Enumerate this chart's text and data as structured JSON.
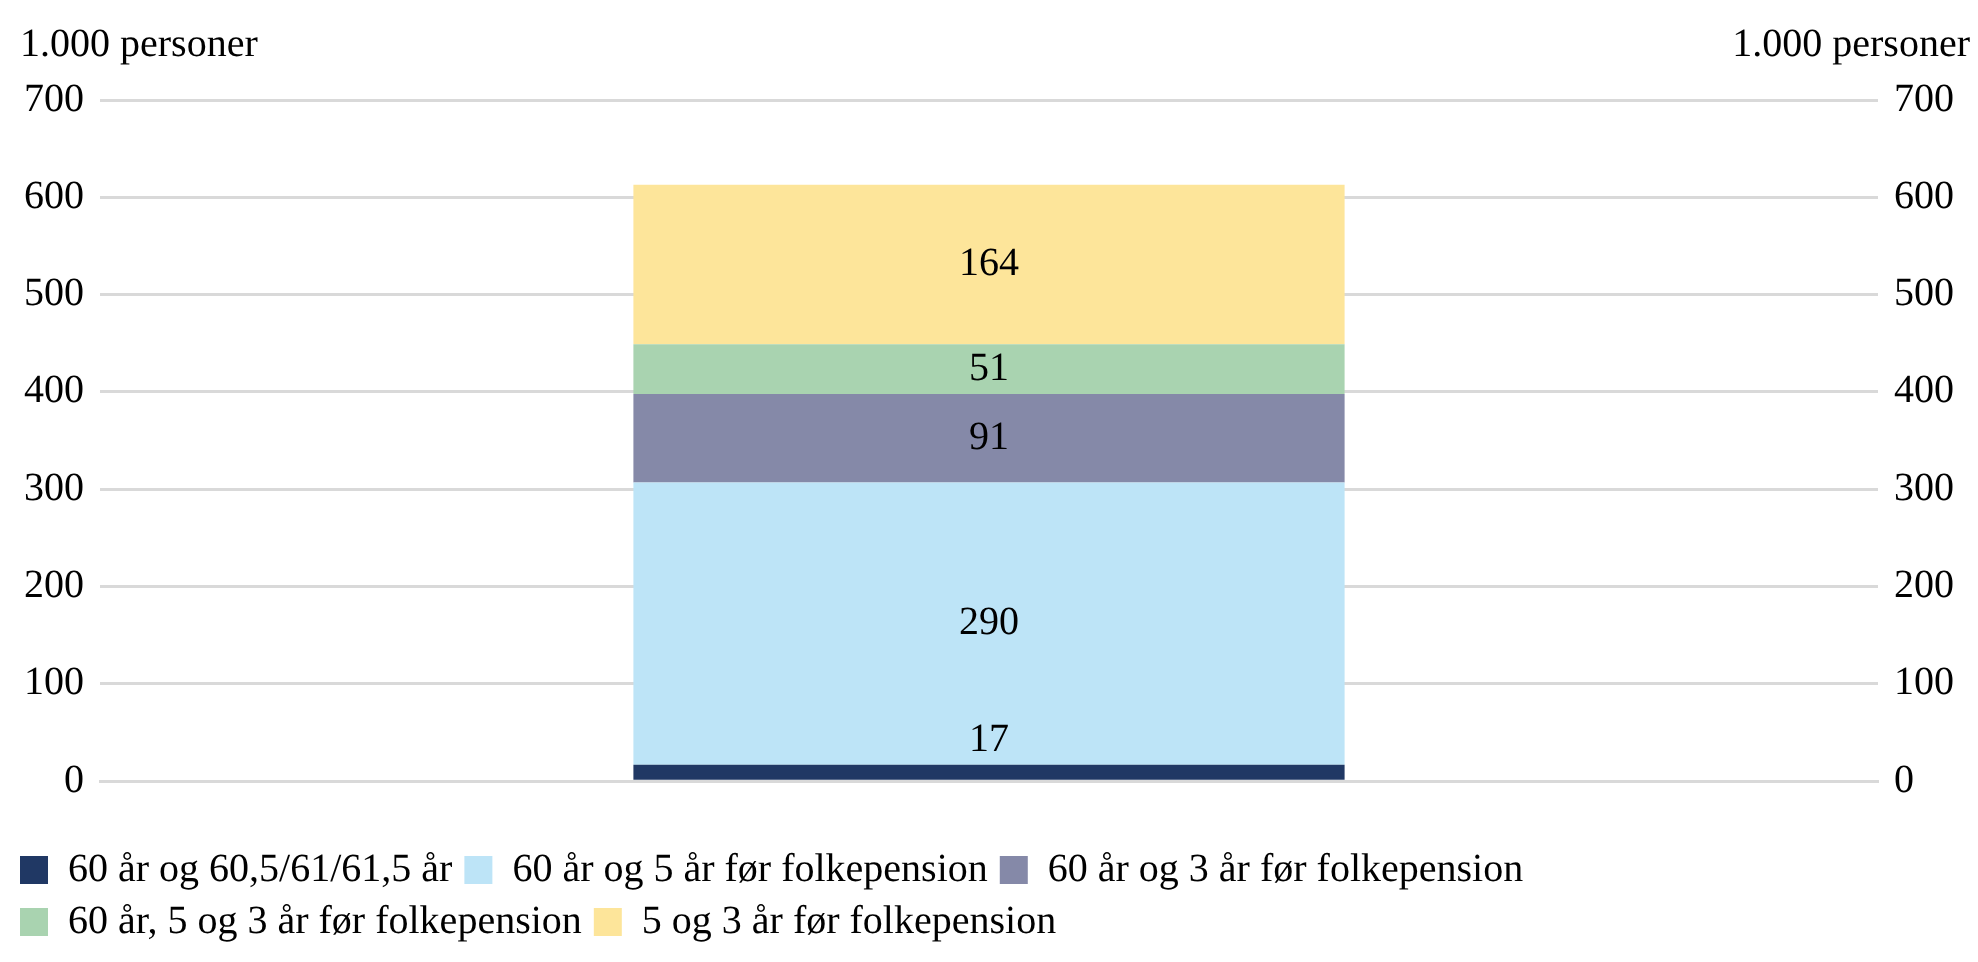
{
  "chart_data": {
    "type": "bar",
    "stacked": true,
    "categories": [
      null
    ],
    "series": [
      {
        "name": "60 år og 60,5/61/61,5 år",
        "color": "#203864",
        "values": [
          17
        ]
      },
      {
        "name": "60 år og 5 år før folkepension",
        "color": "#bde4f7",
        "values": [
          290
        ]
      },
      {
        "name": "60 år og 3 år før folkepension",
        "color": "#8589a8",
        "values": [
          91
        ]
      },
      {
        "name": "60 år, 5 og 3 år før folkepension",
        "color": "#a9d3b0",
        "values": [
          51
        ]
      },
      {
        "name": "5 og 3 år før folkepension",
        "color": "#fde59a",
        "values": [
          164
        ]
      }
    ],
    "ylabel": "1.000 personer",
    "y2label": "1.000 personer",
    "ylim": [
      0,
      700
    ],
    "yticks": [
      0,
      100,
      200,
      300,
      400,
      500,
      600,
      700
    ],
    "y2lim": [
      0,
      700
    ],
    "y2ticks": [
      0,
      100,
      200,
      300,
      400,
      500,
      600,
      700
    ],
    "grid": "y",
    "legend": "bottom",
    "data_labels": true
  }
}
